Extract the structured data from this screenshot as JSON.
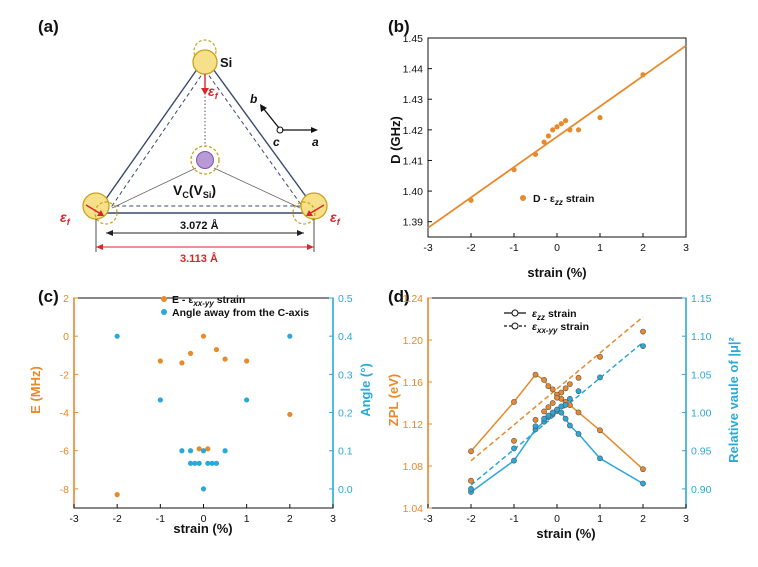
{
  "colors": {
    "orange": "#e8892b",
    "blue": "#2aa8d8",
    "atom_fill": "#f7e08a",
    "atom_stroke": "#c9a21a",
    "vac_fill": "#b99ad6",
    "red": "#d8262b",
    "navy": "#3a4a6b"
  },
  "panel_a": {
    "label": "(a)",
    "si_label": "Si",
    "vacancy_label_main": "V",
    "vacancy_label_sub1": "C",
    "vacancy_label_paren_open": "(V",
    "vacancy_label_sub2": "Si",
    "vacancy_label_paren_close": ")",
    "strain_symbol": "ε",
    "strain_sub": "f",
    "inner_distance": "3.072 Å",
    "outer_distance": "3.113 Å",
    "axis_b": "b",
    "axis_c": "c",
    "axis_a": "a"
  },
  "chart_data": [
    {
      "panel": "(b)",
      "type": "scatter",
      "xlabel": "strain (%)",
      "ylabel": "D (GHz)",
      "xlim": [
        -3,
        3
      ],
      "ylim": [
        1.385,
        1.45
      ],
      "xticks": [
        "-3",
        "-2",
        "-1",
        "0",
        "1",
        "2",
        "3"
      ],
      "yticks": [
        "1.39",
        "1.40",
        "1.41",
        "1.42",
        "1.43",
        "1.44",
        "1.45"
      ],
      "legend": "D - ε_zz strain",
      "legend_main": "D - ε",
      "legend_sub": "zz",
      "legend_tail": " strain",
      "points": [
        [
          -2,
          1.397
        ],
        [
          -1,
          1.407
        ],
        [
          -0.5,
          1.412
        ],
        [
          -0.3,
          1.416
        ],
        [
          -0.2,
          1.418
        ],
        [
          -0.1,
          1.42
        ],
        [
          0,
          1.421
        ],
        [
          0.1,
          1.422
        ],
        [
          0.2,
          1.423
        ],
        [
          0.3,
          1.42
        ],
        [
          0.5,
          1.42
        ],
        [
          1,
          1.424
        ],
        [
          2,
          1.438
        ]
      ],
      "fit_line": [
        [
          -3,
          1.388
        ],
        [
          3,
          1.4475
        ]
      ]
    },
    {
      "panel": "(c)",
      "type": "scatter",
      "xlabel": "strain (%)",
      "ylabel_left": "E (MHz)",
      "ylabel_right": "Angle (°)",
      "xlim": [
        -3,
        3
      ],
      "ylim_left": [
        -9,
        2
      ],
      "ylim_right": [
        -0.05,
        0.5
      ],
      "xticks": [
        "-3",
        "-2",
        "-1",
        "0",
        "1",
        "2",
        "3"
      ],
      "yticks_left": [
        "-8",
        "-6",
        "-4",
        "-2",
        "0",
        "2"
      ],
      "yticks_right": [
        "0.0",
        "0.1",
        "0.2",
        "0.3",
        "0.4",
        "0.5"
      ],
      "series": [
        {
          "name": "E - ε_xx-yy strain",
          "legend_main": "E - ε",
          "legend_sub": "xx-yy",
          "legend_tail": " strain",
          "axis": "left",
          "points": [
            [
              -2,
              -8.3
            ],
            [
              -1,
              -1.3
            ],
            [
              -0.5,
              -1.4
            ],
            [
              -0.3,
              -0.9
            ],
            [
              -0.1,
              -5.9
            ],
            [
              0,
              0.0
            ],
            [
              0.1,
              -5.9
            ],
            [
              0.3,
              -0.7
            ],
            [
              0.5,
              -1.2
            ],
            [
              1,
              -1.3
            ],
            [
              2,
              -4.1
            ]
          ]
        },
        {
          "name": "Angle away from the C-axis",
          "axis": "right",
          "points": [
            [
              -2,
              0.4
            ],
            [
              -1,
              0.233
            ],
            [
              -0.5,
              0.1
            ],
            [
              -0.3,
              0.067
            ],
            [
              -0.2,
              0.067
            ],
            [
              -0.1,
              0.067
            ],
            [
              0,
              0.0
            ],
            [
              0.1,
              0.067
            ],
            [
              0.2,
              0.067
            ],
            [
              0.3,
              0.067
            ],
            [
              0.5,
              0.1
            ],
            [
              1,
              0.233
            ],
            [
              2,
              0.4
            ],
            [
              -0.3,
              0.1
            ],
            [
              0,
              0.1
            ]
          ]
        }
      ]
    },
    {
      "panel": "(d)",
      "type": "line",
      "xlabel": "strain (%)",
      "ylabel_left": "ZPL (eV)",
      "ylabel_right": "Relative vaule of |μ|²",
      "xlim": [
        -3,
        3
      ],
      "ylim_left": [
        1.04,
        1.24
      ],
      "ylim_right": [
        0.875,
        1.15
      ],
      "xticks": [
        "-3",
        "-2",
        "-1",
        "0",
        "1",
        "2",
        "3"
      ],
      "yticks_left": [
        "1.04",
        "1.08",
        "1.12",
        "1.16",
        "1.20",
        "1.24"
      ],
      "yticks_right": [
        "0.90",
        "0.95",
        "1.00",
        "1.05",
        "1.10",
        "1.15"
      ],
      "legend": [
        {
          "main": "ε",
          "sub": "zz",
          "tail": " strain",
          "style": "solid"
        },
        {
          "main": "ε",
          "sub": "xx-yy",
          "tail": " strain",
          "style": "dashed"
        }
      ],
      "series": [
        {
          "name": "ZPL ε_zz",
          "axis": "left",
          "color": "orange",
          "style": "solid",
          "points": [
            [
              -2,
              1.094
            ],
            [
              -1,
              1.141
            ],
            [
              -0.5,
              1.167
            ],
            [
              -0.3,
              1.162
            ],
            [
              -0.2,
              1.156
            ],
            [
              -0.1,
              1.153
            ],
            [
              0,
              1.148
            ],
            [
              0.1,
              1.144
            ],
            [
              0.2,
              1.141
            ],
            [
              0.3,
              1.138
            ],
            [
              0.5,
              1.131
            ],
            [
              1,
              1.114
            ],
            [
              2,
              1.077
            ]
          ]
        },
        {
          "name": "ZPL ε_xx-yy",
          "axis": "left",
          "color": "orange",
          "style": "dashed",
          "points": [
            [
              -2,
              1.066
            ],
            [
              -1,
              1.104
            ],
            [
              -0.5,
              1.124
            ],
            [
              -0.3,
              1.132
            ],
            [
              -0.2,
              1.136
            ],
            [
              -0.1,
              1.14
            ],
            [
              0,
              1.145
            ],
            [
              0.1,
              1.15
            ],
            [
              0.2,
              1.154
            ],
            [
              0.3,
              1.158
            ],
            [
              0.5,
              1.164
            ],
            [
              1,
              1.184
            ],
            [
              2,
              1.208
            ]
          ]
        },
        {
          "name": "μ ε_zz",
          "axis": "right",
          "color": "blue",
          "style": "solid",
          "points": [
            [
              -2,
              0.896
            ],
            [
              -1,
              0.937
            ],
            [
              -0.5,
              0.978
            ],
            [
              -0.3,
              0.988
            ],
            [
              -0.2,
              0.994
            ],
            [
              -0.1,
              0.998
            ],
            [
              0,
              1.002
            ],
            [
              0.1,
              1.0
            ],
            [
              0.2,
              0.992
            ],
            [
              0.3,
              0.983
            ],
            [
              0.5,
              0.972
            ],
            [
              1,
              0.94
            ],
            [
              2,
              0.907
            ]
          ]
        },
        {
          "name": "μ ε_xx-yy",
          "axis": "right",
          "color": "blue",
          "style": "dashed",
          "points": [
            [
              -2,
              0.9
            ],
            [
              -1,
              0.953
            ],
            [
              -0.5,
              0.982
            ],
            [
              -0.3,
              0.992
            ],
            [
              -0.2,
              0.996
            ],
            [
              -0.1,
              1.0
            ],
            [
              0,
              1.004
            ],
            [
              0.1,
              1.008
            ],
            [
              0.2,
              1.01
            ],
            [
              0.3,
              1.018
            ],
            [
              0.5,
              1.028
            ],
            [
              1,
              1.046
            ],
            [
              2,
              1.087
            ]
          ]
        }
      ],
      "fit_lines": [
        {
          "axis": "left",
          "color": "orange",
          "points": [
            [
              -2,
              1.085
            ],
            [
              2,
              1.222
            ]
          ]
        },
        {
          "axis": "right",
          "color": "blue",
          "points": [
            [
              -2,
              0.905
            ],
            [
              2,
              1.092
            ]
          ]
        }
      ]
    }
  ]
}
